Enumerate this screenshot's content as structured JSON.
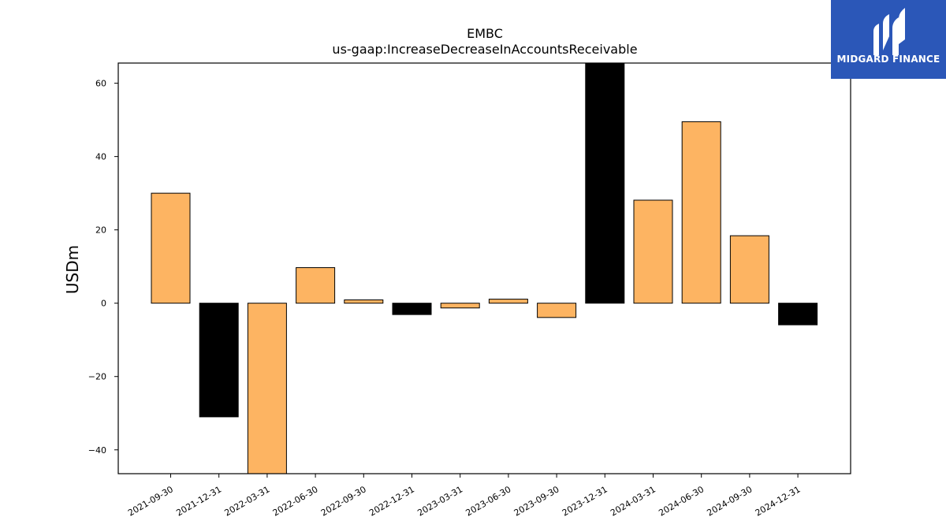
{
  "brand": {
    "name": "MIDGARD FINANCE",
    "color": "#2b57b8"
  },
  "chart_data": {
    "type": "bar",
    "title": "EMBC",
    "subtitle": "us-gaap:IncreaseDecreaseInAccountsReceivable",
    "xlabel": "",
    "ylabel": "USDm",
    "ylim": [
      -46.5,
      65.5
    ],
    "yticks": [
      -40,
      -20,
      0,
      20,
      40,
      60
    ],
    "ytick_labels": [
      "−40",
      "−20",
      "0",
      "20",
      "40",
      "60"
    ],
    "grid": false,
    "categories": [
      "2021-09-30",
      "2021-12-31",
      "2022-03-31",
      "2022-06-30",
      "2022-09-30",
      "2022-12-31",
      "2023-03-31",
      "2023-06-30",
      "2023-09-30",
      "2023-12-31",
      "2024-03-31",
      "2024-06-30",
      "2024-09-30",
      "2024-12-31"
    ],
    "values": [
      30.0,
      -31.0,
      -46.5,
      9.7,
      0.9,
      -3.1,
      -1.3,
      1.1,
      -3.9,
      65.5,
      28.1,
      49.5,
      18.4,
      -5.9
    ],
    "colors": [
      "#fdb462",
      "#000000",
      "#fdb462",
      "#fdb462",
      "#fdb462",
      "#000000",
      "#fdb462",
      "#fdb462",
      "#fdb462",
      "#000000",
      "#fdb462",
      "#fdb462",
      "#fdb462",
      "#000000"
    ]
  }
}
